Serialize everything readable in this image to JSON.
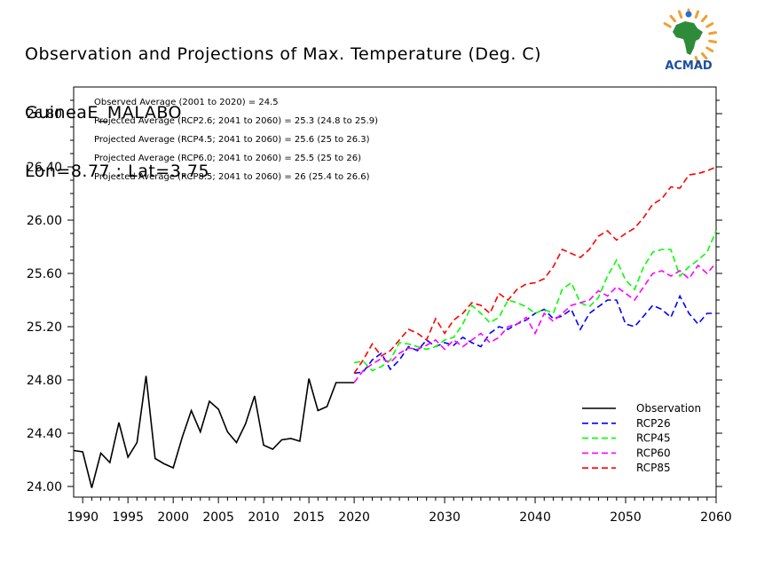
{
  "header": {
    "title_line1": "Observation and Projections of Max. Temperature (Deg. C)",
    "title_line2": "GuineaE_MALABO",
    "title_line3": "Lon=8.77 : Lat=3.75"
  },
  "logo": {
    "text": "ACMAD"
  },
  "colors": {
    "observation": "#000000",
    "rcp26": "#0000ff",
    "rcp45": "#00ff00",
    "rcp60": "#ff00ff",
    "rcp85": "#ff0000"
  },
  "chart_data": {
    "type": "line",
    "xlim": [
      1989,
      2060
    ],
    "ylim": [
      23.92,
      27.0
    ],
    "x_ticks": [
      1990,
      1995,
      2000,
      2005,
      2010,
      2015,
      2020,
      2030,
      2040,
      2050,
      2060
    ],
    "x_tick_labels": [
      "1990",
      "1995",
      "2000",
      "2005",
      "2010",
      "2015",
      "2020",
      "2030",
      "2040",
      "2050",
      "2060"
    ],
    "y_ticks": [
      24.0,
      24.4,
      24.8,
      25.2,
      25.6,
      26.0,
      26.4,
      26.8
    ],
    "y_tick_labels": [
      "24.00",
      "24.40",
      "24.80",
      "25.20",
      "25.60",
      "26.00",
      "26.40",
      "26.80"
    ],
    "annotations": [
      "Observed Average (2001 to 2020) = 24.5",
      "Projected Average (RCP2.6; 2041 to 2060) = 25.3 (24.8 to 25.9)",
      "Projected Average (RCP4.5; 2041 to 2060) = 25.6 (25 to 26.3)",
      "Projected Average (RCP6.0; 2041 to 2060) = 25.5 (25 to 26)",
      "Projected Average (RCP8.5; 2041 to 2060) = 26 (25.4 to 26.6)"
    ],
    "legend_position": "bottom-right",
    "series": [
      {
        "name": "Observation",
        "key": "observation",
        "style": "solid",
        "x": [
          1989,
          1990,
          1991,
          1992,
          1993,
          1994,
          1995,
          1996,
          1997,
          1998,
          1999,
          2000,
          2001,
          2002,
          2003,
          2004,
          2005,
          2006,
          2007,
          2008,
          2009,
          2010,
          2011,
          2012,
          2013,
          2014,
          2015,
          2016,
          2017,
          2018,
          2019,
          2020
        ],
        "y": [
          24.27,
          24.26,
          23.99,
          24.25,
          24.18,
          24.48,
          24.22,
          24.33,
          24.83,
          24.21,
          24.17,
          24.14,
          24.37,
          24.57,
          24.41,
          24.64,
          24.58,
          24.41,
          24.33,
          24.47,
          24.68,
          24.31,
          24.28,
          24.35,
          24.36,
          24.34,
          24.81,
          24.57,
          24.6,
          24.78,
          24.78,
          24.78
        ]
      },
      {
        "name": "RCP26",
        "key": "rcp26",
        "style": "dashed",
        "x": [
          2020,
          2021,
          2022,
          2023,
          2024,
          2025,
          2026,
          2027,
          2028,
          2029,
          2030,
          2031,
          2032,
          2033,
          2034,
          2035,
          2036,
          2037,
          2038,
          2039,
          2040,
          2041,
          2042,
          2043,
          2044,
          2045,
          2046,
          2047,
          2048,
          2049,
          2050,
          2051,
          2052,
          2053,
          2054,
          2055,
          2056,
          2057,
          2058,
          2059,
          2060
        ],
        "y": [
          24.85,
          24.86,
          24.95,
          25.0,
          24.88,
          24.95,
          25.05,
          25.02,
          25.1,
          25.05,
          25.08,
          25.06,
          25.12,
          25.08,
          25.05,
          25.15,
          25.2,
          25.18,
          25.22,
          25.25,
          25.3,
          25.33,
          25.26,
          25.28,
          25.33,
          25.18,
          25.3,
          25.35,
          25.4,
          25.4,
          25.22,
          25.2,
          25.28,
          25.36,
          25.33,
          25.27,
          25.43,
          25.3,
          25.22,
          25.3,
          25.3
        ]
      },
      {
        "name": "RCP45",
        "key": "rcp45",
        "style": "dashed",
        "x": [
          2020,
          2021,
          2022,
          2023,
          2024,
          2025,
          2026,
          2027,
          2028,
          2029,
          2030,
          2031,
          2032,
          2033,
          2034,
          2035,
          2036,
          2037,
          2038,
          2039,
          2040,
          2041,
          2042,
          2043,
          2044,
          2045,
          2046,
          2047,
          2048,
          2049,
          2050,
          2051,
          2052,
          2053,
          2054,
          2055,
          2056,
          2057,
          2058,
          2059,
          2060
        ],
        "y": [
          24.93,
          24.94,
          24.87,
          24.9,
          24.95,
          25.08,
          25.07,
          25.05,
          25.03,
          25.05,
          25.1,
          25.12,
          25.22,
          25.36,
          25.3,
          25.23,
          25.27,
          25.4,
          25.38,
          25.35,
          25.3,
          25.33,
          25.3,
          25.48,
          25.53,
          25.38,
          25.35,
          25.42,
          25.58,
          25.7,
          25.55,
          25.48,
          25.65,
          25.76,
          25.78,
          25.78,
          25.58,
          25.65,
          25.7,
          25.76,
          25.92
        ]
      },
      {
        "name": "RCP60",
        "key": "rcp60",
        "style": "dashed",
        "x": [
          2020,
          2021,
          2022,
          2023,
          2024,
          2025,
          2026,
          2027,
          2028,
          2029,
          2030,
          2031,
          2032,
          2033,
          2034,
          2035,
          2036,
          2037,
          2038,
          2039,
          2040,
          2041,
          2042,
          2043,
          2044,
          2045,
          2046,
          2047,
          2048,
          2049,
          2050,
          2051,
          2052,
          2053,
          2054,
          2055,
          2056,
          2057,
          2058,
          2059,
          2060
        ],
        "y": [
          24.78,
          24.87,
          24.92,
          24.96,
          24.93,
          25.0,
          25.04,
          25.03,
          25.06,
          25.1,
          25.03,
          25.1,
          25.05,
          25.1,
          25.15,
          25.08,
          25.12,
          25.2,
          25.22,
          25.27,
          25.15,
          25.3,
          25.24,
          25.3,
          25.36,
          25.38,
          25.4,
          25.47,
          25.43,
          25.5,
          25.45,
          25.4,
          25.5,
          25.6,
          25.62,
          25.58,
          25.62,
          25.56,
          25.66,
          25.6,
          25.68
        ]
      },
      {
        "name": "RCP85",
        "key": "rcp85",
        "style": "dashed",
        "x": [
          2020,
          2021,
          2022,
          2023,
          2024,
          2025,
          2026,
          2027,
          2028,
          2029,
          2030,
          2031,
          2032,
          2033,
          2034,
          2035,
          2036,
          2037,
          2038,
          2039,
          2040,
          2041,
          2042,
          2043,
          2044,
          2045,
          2046,
          2047,
          2048,
          2049,
          2050,
          2051,
          2052,
          2053,
          2054,
          2055,
          2056,
          2057,
          2058,
          2059,
          2060
        ],
        "y": [
          24.85,
          24.95,
          25.07,
          24.98,
          25.02,
          25.1,
          25.18,
          25.15,
          25.1,
          25.26,
          25.15,
          25.25,
          25.3,
          25.38,
          25.36,
          25.3,
          25.45,
          25.4,
          25.48,
          25.52,
          25.53,
          25.56,
          25.65,
          25.78,
          25.75,
          25.72,
          25.78,
          25.88,
          25.92,
          25.85,
          25.9,
          25.94,
          26.02,
          26.12,
          26.16,
          26.25,
          26.24,
          26.34,
          26.35,
          26.37,
          26.4
        ]
      }
    ]
  }
}
